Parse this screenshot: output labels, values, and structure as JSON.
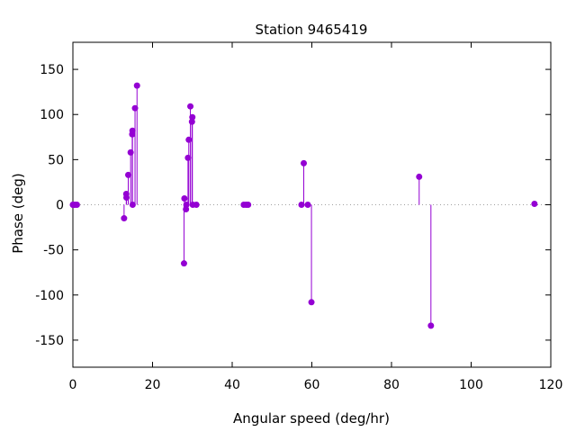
{
  "chart_data": {
    "type": "scatter",
    "style": "impulses-with-points",
    "title": "Station 9465419",
    "xlabel": "Angular speed (deg/hr)",
    "ylabel": "Phase (deg)",
    "xlim": [
      0,
      120
    ],
    "ylim": [
      -180,
      180
    ],
    "xticks": [
      0,
      20,
      40,
      60,
      80,
      100,
      120
    ],
    "yticks": [
      -150,
      -100,
      -50,
      0,
      50,
      100,
      150
    ],
    "zero_line": true,
    "grid": false,
    "color": "#9400d3",
    "points": [
      {
        "x": 0.0,
        "y": 0
      },
      {
        "x": 0.04,
        "y": 0
      },
      {
        "x": 0.08,
        "y": 0
      },
      {
        "x": 0.5,
        "y": 0
      },
      {
        "x": 1.0,
        "y": 0
      },
      {
        "x": 12.85,
        "y": -15
      },
      {
        "x": 13.4,
        "y": 12
      },
      {
        "x": 13.45,
        "y": 8
      },
      {
        "x": 13.9,
        "y": 33
      },
      {
        "x": 14.5,
        "y": 58
      },
      {
        "x": 14.9,
        "y": 78
      },
      {
        "x": 14.96,
        "y": 82
      },
      {
        "x": 15.0,
        "y": 0
      },
      {
        "x": 15.6,
        "y": 107
      },
      {
        "x": 16.1,
        "y": 132
      },
      {
        "x": 27.9,
        "y": -65
      },
      {
        "x": 28.0,
        "y": 7
      },
      {
        "x": 28.4,
        "y": -5
      },
      {
        "x": 28.5,
        "y": 0
      },
      {
        "x": 28.9,
        "y": 52
      },
      {
        "x": 29.1,
        "y": 72
      },
      {
        "x": 29.5,
        "y": 109
      },
      {
        "x": 29.9,
        "y": 92
      },
      {
        "x": 30.0,
        "y": 97
      },
      {
        "x": 30.1,
        "y": 0
      },
      {
        "x": 31.0,
        "y": 0
      },
      {
        "x": 42.9,
        "y": 0
      },
      {
        "x": 43.5,
        "y": 0
      },
      {
        "x": 44.0,
        "y": 0
      },
      {
        "x": 57.4,
        "y": 0
      },
      {
        "x": 57.97,
        "y": 46
      },
      {
        "x": 58.98,
        "y": 0
      },
      {
        "x": 59.9,
        "y": -108
      },
      {
        "x": 86.95,
        "y": 31
      },
      {
        "x": 89.9,
        "y": -134
      },
      {
        "x": 115.9,
        "y": 1
      }
    ]
  }
}
